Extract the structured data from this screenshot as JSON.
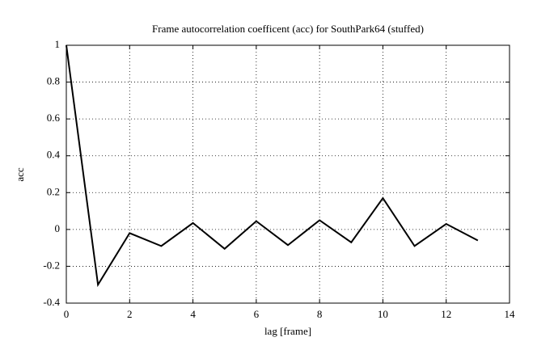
{
  "chart_data": {
    "type": "line",
    "title": "Frame autocorrelation coefficent (acc) for SouthPark64 (stuffed)",
    "xlabel": "lag [frame]",
    "ylabel": "acc",
    "x": [
      0,
      1,
      2,
      3,
      4,
      5,
      6,
      7,
      8,
      9,
      10,
      11,
      12,
      13
    ],
    "series": [
      {
        "color": "#000000",
        "values": [
          1.0,
          -0.3,
          -0.02,
          -0.09,
          0.035,
          -0.105,
          0.045,
          -0.085,
          0.05,
          -0.07,
          0.17,
          -0.09,
          0.03,
          -0.06
        ]
      }
    ],
    "xlim": [
      0,
      14
    ],
    "xticks": [
      0,
      2,
      4,
      6,
      8,
      10,
      12,
      14
    ],
    "ylim": [
      -0.4,
      1
    ],
    "yticks": [
      -0.4,
      -0.2,
      0,
      0.2,
      0.4,
      0.6,
      0.8,
      1
    ],
    "grid": true
  }
}
